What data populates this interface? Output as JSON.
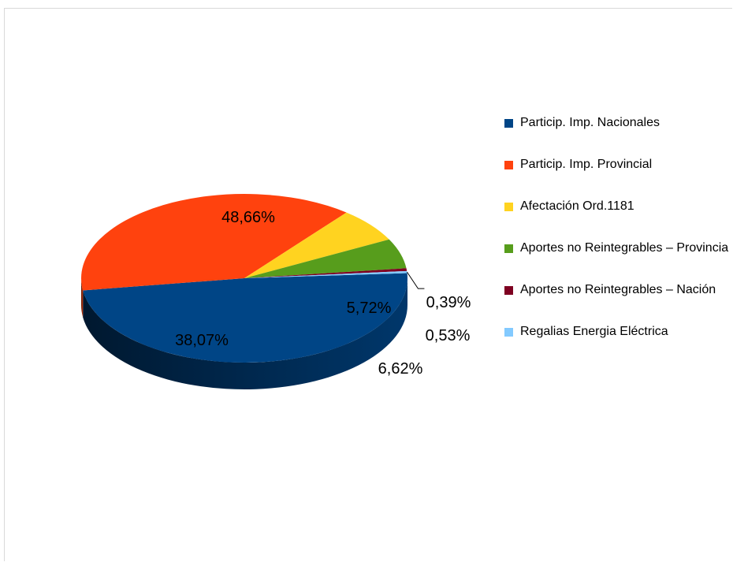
{
  "chart_data": {
    "type": "pie",
    "title": "",
    "legend_position": "right",
    "slices": [
      {
        "name": "Particip. Imp. Nacionales",
        "value": 48.66,
        "label": "48,66%",
        "color": "#004586"
      },
      {
        "name": "Particip. Imp. Provincial",
        "value": 38.07,
        "label": "38,07%",
        "color": "#ff420e"
      },
      {
        "name": "Afectación Ord.1181",
        "value": 6.62,
        "label": "6,62%",
        "color": "#ffd320"
      },
      {
        "name": "Aportes no Reintegrables – Provincia",
        "value": 5.72,
        "label": "5,72%",
        "color": "#579d1c"
      },
      {
        "name": "Aportes no Reintegrables – Nación",
        "value": 0.53,
        "label": "0,53%",
        "color": "#7e0021"
      },
      {
        "name": "Regalias Energia Eléctrica",
        "value": 0.39,
        "label": "0,39%",
        "color": "#83caff"
      }
    ]
  }
}
